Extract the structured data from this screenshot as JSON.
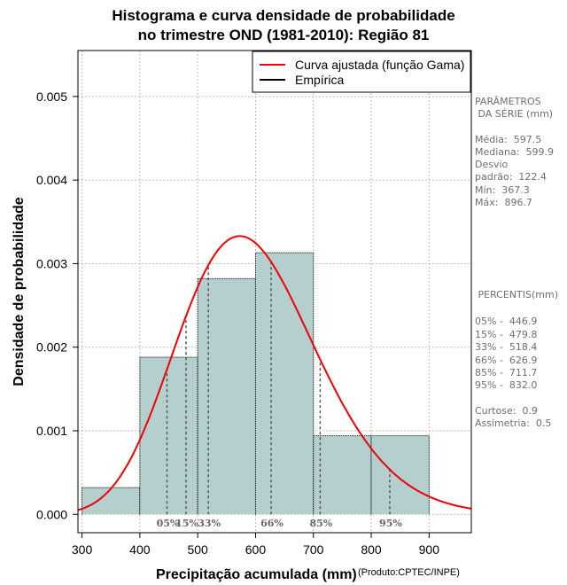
{
  "chart_data": {
    "type": "bar",
    "title_line1": "Histograma e curva densidade de probabilidade",
    "title_line2": "no trimestre OND (1981-2010): Região 81",
    "xlabel": "Precipitação acumulada (mm)",
    "ylabel": "Densidade de probabilidade",
    "credit": "(Produto:CPTEC/INPE)",
    "xlim": [
      293,
      973
    ],
    "ylim": [
      -0.00022,
      0.00555
    ],
    "xticks": [
      300,
      400,
      500,
      600,
      700,
      800,
      900
    ],
    "yticks": [
      0.0,
      0.001,
      0.002,
      0.003,
      0.004,
      0.005
    ],
    "ytick_labels": [
      "0.000",
      "0.001",
      "0.002",
      "0.003",
      "0.004",
      "0.005"
    ],
    "grid": true,
    "bins": [
      {
        "start": 300,
        "end": 400,
        "density": 0.00032
      },
      {
        "start": 400,
        "end": 500,
        "density": 0.00188
      },
      {
        "start": 500,
        "end": 600,
        "density": 0.00282
      },
      {
        "start": 600,
        "end": 700,
        "density": 0.00313
      },
      {
        "start": 700,
        "end": 800,
        "density": 0.00094
      },
      {
        "start": 800,
        "end": 900,
        "density": 0.00094
      }
    ],
    "gamma_fit": {
      "shape": 24.0,
      "mean": 597.5
    },
    "legend": {
      "position": "top-right",
      "entries": [
        {
          "label": "Curva ajustada (função Gama)",
          "color": "#ee0000"
        },
        {
          "label": "Empírica",
          "color": "#000000"
        }
      ]
    },
    "percentile_lines": [
      {
        "label": "05%",
        "value": 446.9
      },
      {
        "label": "15%",
        "value": 479.8
      },
      {
        "label": "33%",
        "value": 518.4
      },
      {
        "label": "66%",
        "value": 626.9
      },
      {
        "label": "85%",
        "value": 711.7
      },
      {
        "label": "95%",
        "value": 832.0
      }
    ],
    "colors": {
      "bar": "#b5cfcf",
      "curve": "#ee0000",
      "grid": "#bdbdbd",
      "percentile": "#555555"
    }
  },
  "side_panel": {
    "params_title1": "PARÂMETROS",
    "params_title2": " DA SÉRIE (mm)",
    "media": "Média:  597.5",
    "mediana": "Mediana:  599.9",
    "desvio1": "Desvio",
    "desvio2": "padrão:  122.4",
    "min": "Mín:  367.3",
    "max": "Máx:  896.7",
    "percentis_title": " PERCENTIS(mm)",
    "p05": "05% -  446.9",
    "p15": "15% -  479.8",
    "p33": "33% -  518.4",
    "p66": "66% -  626.9",
    "p85": "85% -  711.7",
    "p95": "95% -  832.0",
    "curtose": "Curtose:  0.9",
    "assimetria": "Assimetria:  0.5"
  }
}
